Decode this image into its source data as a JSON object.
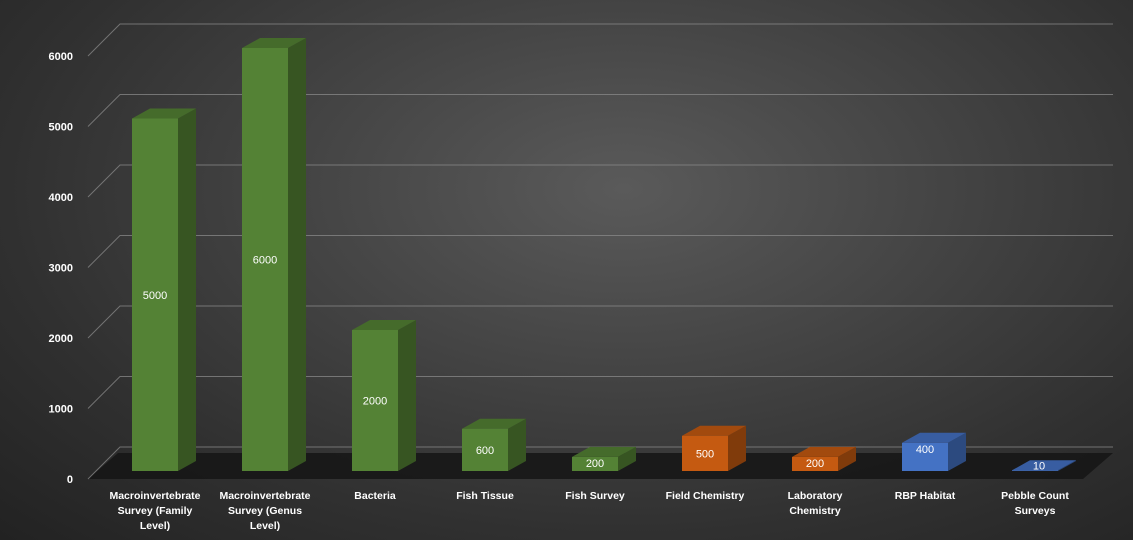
{
  "chart_data": {
    "type": "bar",
    "title": "",
    "xlabel": "",
    "ylabel": "",
    "style": "3d-column",
    "grid": true,
    "legend": "none",
    "ylim": [
      0,
      6000
    ],
    "yticks": [
      0,
      1000,
      2000,
      3000,
      4000,
      5000,
      6000
    ],
    "categories": [
      {
        "lines": [
          "Macroinvertebrate",
          "Survey (Family",
          "Level)"
        ]
      },
      {
        "lines": [
          "Macroinvertebrate",
          "Survey (Genus",
          "Level)"
        ]
      },
      {
        "lines": [
          "Bacteria"
        ]
      },
      {
        "lines": [
          "Fish Tissue"
        ]
      },
      {
        "lines": [
          "Fish Survey"
        ]
      },
      {
        "lines": [
          "Field Chemistry"
        ]
      },
      {
        "lines": [
          "Laboratory",
          "Chemistry"
        ]
      },
      {
        "lines": [
          "RBP Habitat"
        ]
      },
      {
        "lines": [
          "Pebble Count",
          "Surveys"
        ]
      }
    ],
    "values": [
      5000,
      6000,
      2000,
      600,
      200,
      500,
      200,
      400,
      10
    ],
    "data_labels": [
      "5000",
      "6000",
      "2000",
      "600",
      "200",
      "500",
      "200",
      "400",
      "10"
    ],
    "bar_colors": [
      "#548235",
      "#548235",
      "#548235",
      "#548235",
      "#548235",
      "#c55a11",
      "#c55a11",
      "#4472c4",
      "#4472c4"
    ]
  }
}
